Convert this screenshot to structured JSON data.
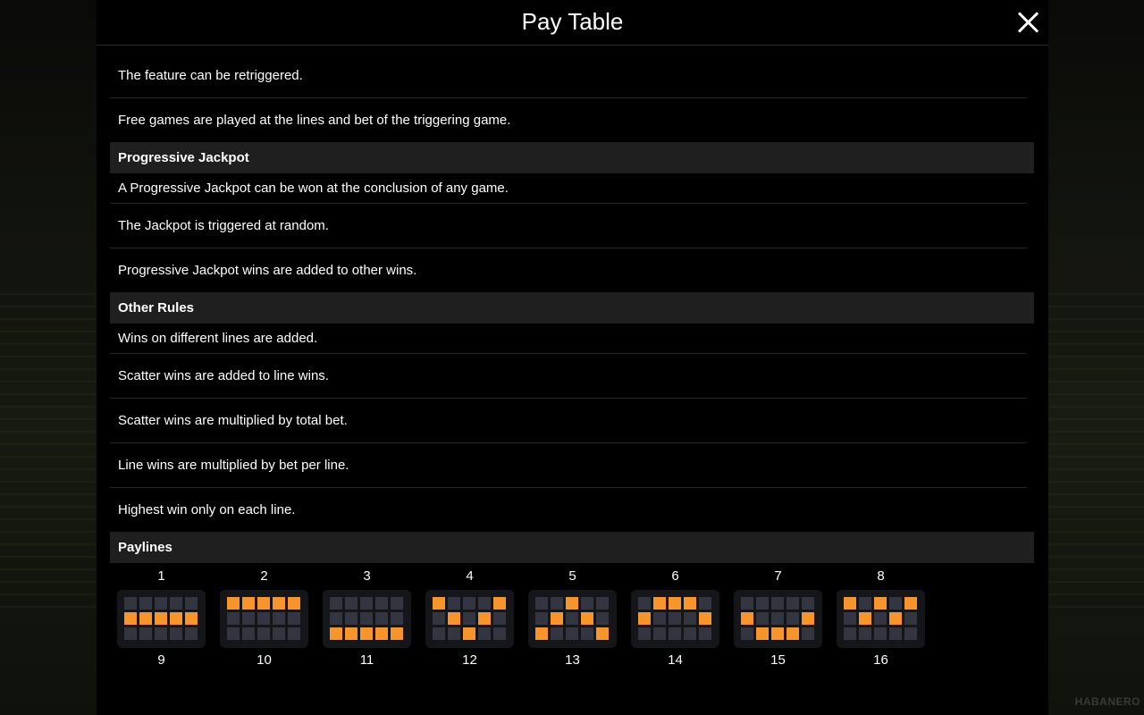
{
  "header": {
    "title": "Pay Table"
  },
  "intro_rows": [
    "The feature can be retriggered.",
    "Free games are played at the lines and bet of the triggering game."
  ],
  "sections": {
    "progressive": {
      "title": "Progressive Jackpot",
      "rows": [
        "A Progressive Jackpot can be won at the conclusion of any game.",
        "The Jackpot is triggered at random.",
        "Progressive Jackpot wins are added to other wins."
      ]
    },
    "other_rules": {
      "title": "Other Rules",
      "rows": [
        "Wins on different lines are added.",
        "Scatter wins are added to line wins.",
        "Scatter wins are multiplied by total bet.",
        "Line wins are multiplied by bet per line.",
        "Highest win only on each line."
      ]
    },
    "paylines": {
      "title": "Paylines"
    }
  },
  "paylines": [
    {
      "label": "1",
      "rows": [
        1,
        1,
        1,
        1,
        1
      ]
    },
    {
      "label": "2",
      "rows": [
        0,
        0,
        0,
        0,
        0
      ]
    },
    {
      "label": "3",
      "rows": [
        2,
        2,
        2,
        2,
        2
      ]
    },
    {
      "label": "4",
      "rows": [
        0,
        1,
        2,
        1,
        0
      ]
    },
    {
      "label": "5",
      "rows": [
        2,
        1,
        0,
        1,
        2
      ]
    },
    {
      "label": "6",
      "rows": [
        1,
        0,
        0,
        0,
        1
      ]
    },
    {
      "label": "7",
      "rows": [
        1,
        2,
        2,
        2,
        1
      ]
    },
    {
      "label": "8",
      "rows": [
        0,
        1,
        0,
        1,
        0
      ]
    }
  ],
  "paylines_next_labels": [
    "9",
    "10",
    "11",
    "12",
    "13",
    "14",
    "15",
    "16"
  ],
  "colors": {
    "active_cell": "#f7952b",
    "inactive_cell": "#333640",
    "section_header_bg": "#1f1f1f"
  },
  "watermark": "HABANERO"
}
